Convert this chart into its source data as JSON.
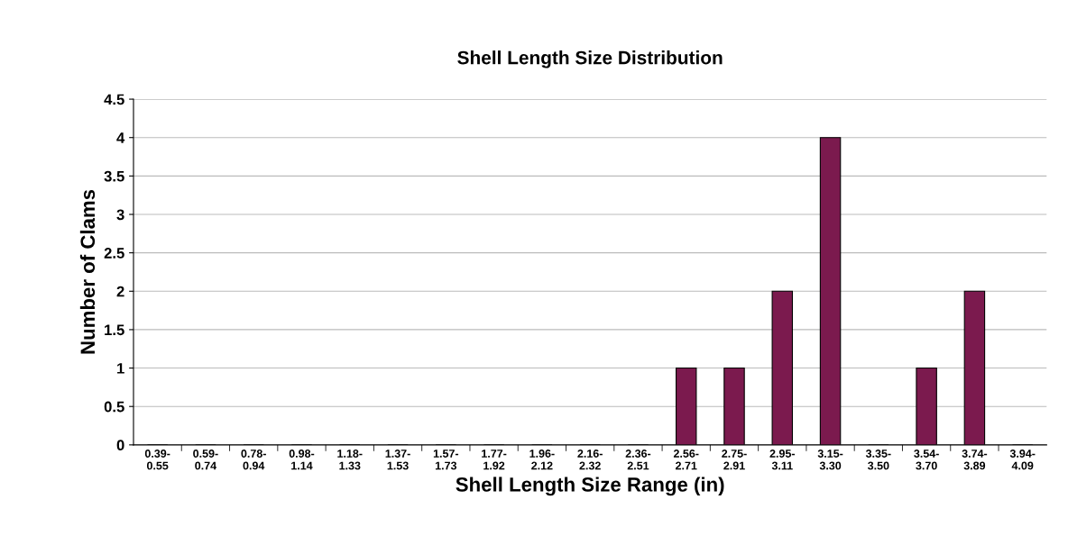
{
  "chart_data": {
    "type": "bar",
    "title": "Shell Length Size Distribution",
    "xlabel": "Shell Length Size Range (in)",
    "ylabel": "Number of Clams",
    "categories": [
      "0.39-\n0.55",
      "0.59-\n0.74",
      "0.78-\n0.94",
      "0.98-\n1.14",
      "1.18-\n1.33",
      "1.37-\n1.53",
      "1.57-\n1.73",
      "1.77-\n1.92",
      "1.96-\n2.12",
      "2.16-\n2.32",
      "2.36-\n2.51",
      "2.56-\n2.71",
      "2.75-\n2.91",
      "2.95-\n3.11",
      "3.15-\n3.30",
      "3.35-\n3.50",
      "3.54-\n3.70",
      "3.74-\n3.89",
      "3.94-\n4.09"
    ],
    "values": [
      0,
      0,
      0,
      0,
      0,
      0,
      0,
      0,
      0,
      0,
      0,
      1,
      1,
      2,
      4,
      0,
      1,
      2,
      0
    ],
    "color": "#7b1a4e",
    "ylim": [
      0,
      4.5
    ],
    "yticks": [
      0,
      0.5,
      1,
      1.5,
      2,
      2.5,
      3,
      3.5,
      4,
      4.5
    ],
    "grid": "y"
  }
}
